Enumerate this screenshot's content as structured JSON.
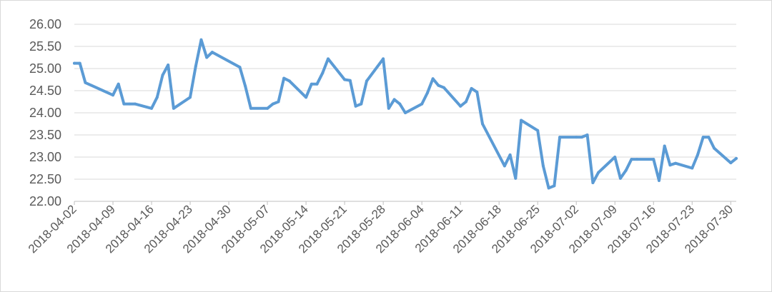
{
  "chart_data": {
    "type": "line",
    "title": "",
    "xlabel": "",
    "ylabel": "",
    "ylim": [
      22.0,
      26.0
    ],
    "y_ticks": [
      "22.00",
      "22.50",
      "23.00",
      "23.50",
      "24.00",
      "24.50",
      "25.00",
      "25.50",
      "26.00"
    ],
    "x_tick_labels": [
      "2018-04-02",
      "2018-04-09",
      "2018-04-16",
      "2018-04-23",
      "2018-04-30",
      "2018-05-07",
      "2018-05-14",
      "2018-05-21",
      "2018-05-28",
      "2018-06-04",
      "2018-06-11",
      "2018-06-18",
      "2018-06-25",
      "2018-07-02",
      "2018-07-09",
      "2018-07-16",
      "2018-07-23",
      "2018-07-30"
    ],
    "grid": true,
    "legend": "none",
    "colors": {
      "line": "#5b9bd5"
    },
    "series": [
      {
        "x": [
          "2018-04-02",
          "2018-04-03",
          "2018-04-04",
          "2018-04-09",
          "2018-04-10",
          "2018-04-11",
          "2018-04-12",
          "2018-04-13",
          "2018-04-16",
          "2018-04-17",
          "2018-04-18",
          "2018-04-19",
          "2018-04-20",
          "2018-04-23",
          "2018-04-24",
          "2018-04-25",
          "2018-04-26",
          "2018-04-27",
          "2018-05-02",
          "2018-05-03",
          "2018-05-04",
          "2018-05-07",
          "2018-05-08",
          "2018-05-09",
          "2018-05-10",
          "2018-05-11",
          "2018-05-14",
          "2018-05-15",
          "2018-05-16",
          "2018-05-17",
          "2018-05-18",
          "2018-05-21",
          "2018-05-22",
          "2018-05-23",
          "2018-05-24",
          "2018-05-25",
          "2018-05-28",
          "2018-05-29",
          "2018-05-30",
          "2018-05-31",
          "2018-06-01",
          "2018-06-04",
          "2018-06-05",
          "2018-06-06",
          "2018-06-07",
          "2018-06-08",
          "2018-06-11",
          "2018-06-12",
          "2018-06-13",
          "2018-06-14",
          "2018-06-15",
          "2018-06-19",
          "2018-06-20",
          "2018-06-21",
          "2018-06-22",
          "2018-06-25",
          "2018-06-26",
          "2018-06-27",
          "2018-06-28",
          "2018-06-29",
          "2018-07-02",
          "2018-07-03",
          "2018-07-04",
          "2018-07-05",
          "2018-07-06",
          "2018-07-09",
          "2018-07-10",
          "2018-07-11",
          "2018-07-12",
          "2018-07-13",
          "2018-07-16",
          "2018-07-17",
          "2018-07-18",
          "2018-07-19",
          "2018-07-20",
          "2018-07-23",
          "2018-07-24",
          "2018-07-25",
          "2018-07-26",
          "2018-07-27",
          "2018-07-30",
          "2018-07-31"
        ],
        "y": [
          25.12,
          25.12,
          24.68,
          24.4,
          24.65,
          24.2,
          24.2,
          24.2,
          24.1,
          24.35,
          24.85,
          25.08,
          24.1,
          24.35,
          25.05,
          25.65,
          25.25,
          25.37,
          25.03,
          24.6,
          24.1,
          24.1,
          24.2,
          24.25,
          24.78,
          24.72,
          24.35,
          24.65,
          24.65,
          24.9,
          25.22,
          24.75,
          24.73,
          24.15,
          24.2,
          24.72,
          25.22,
          24.1,
          24.3,
          24.2,
          24.0,
          24.2,
          24.45,
          24.77,
          24.62,
          24.57,
          24.15,
          24.25,
          24.55,
          24.47,
          23.75,
          22.8,
          23.05,
          22.52,
          23.83,
          23.6,
          22.8,
          22.3,
          22.35,
          23.45,
          23.45,
          23.45,
          23.5,
          22.42,
          22.65,
          23.0,
          22.52,
          22.7,
          22.95,
          22.95,
          22.95,
          22.47,
          23.25,
          22.82,
          22.86,
          22.75,
          23.05,
          23.45,
          23.45,
          23.2,
          22.87,
          22.97
        ]
      }
    ]
  }
}
